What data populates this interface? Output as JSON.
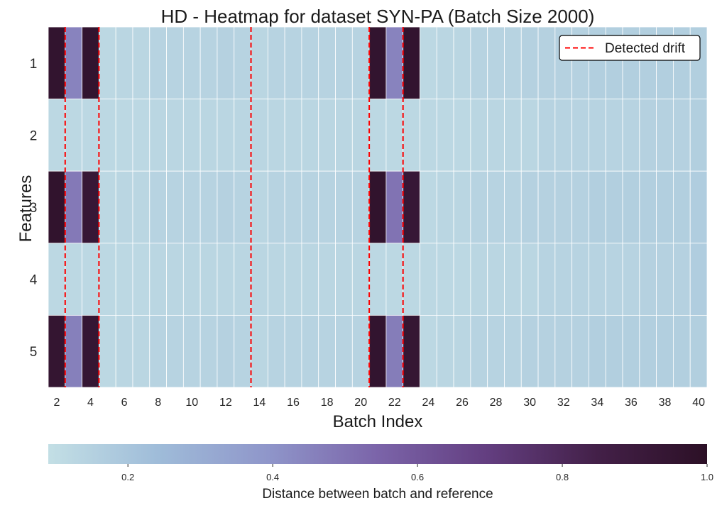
{
  "chart_data": {
    "type": "heatmap",
    "title": "HD - Heatmap for dataset SYN-PA (Batch Size 2000)",
    "xlabel": "Batch Index",
    "ylabel": "Features",
    "x": [
      2,
      3,
      4,
      5,
      6,
      7,
      8,
      9,
      10,
      11,
      12,
      13,
      14,
      15,
      16,
      17,
      18,
      19,
      20,
      21,
      22,
      23,
      24,
      25,
      26,
      27,
      28,
      29,
      30,
      31,
      32,
      33,
      34,
      35,
      36,
      37,
      38,
      39,
      40
    ],
    "x_tick_labels": [
      "2",
      "4",
      "6",
      "8",
      "10",
      "12",
      "14",
      "16",
      "18",
      "20",
      "22",
      "24",
      "26",
      "28",
      "30",
      "32",
      "34",
      "36",
      "38",
      "40"
    ],
    "y_tick_labels": [
      "1",
      "2",
      "3",
      "4",
      "5"
    ],
    "values": [
      [
        0.96,
        0.45,
        0.96,
        0.12,
        0.13,
        0.13,
        0.14,
        0.14,
        0.14,
        0.14,
        0.15,
        0.14,
        0.13,
        0.14,
        0.14,
        0.14,
        0.14,
        0.14,
        0.14,
        0.96,
        0.45,
        0.96,
        0.12,
        0.13,
        0.13,
        0.14,
        0.14,
        0.14,
        0.15,
        0.15,
        0.15,
        0.15,
        0.16,
        0.16,
        0.16,
        0.16,
        0.16,
        0.16,
        0.16
      ],
      [
        0.12,
        0.12,
        0.12,
        0.12,
        0.12,
        0.12,
        0.13,
        0.13,
        0.13,
        0.13,
        0.13,
        0.13,
        0.13,
        0.13,
        0.13,
        0.13,
        0.13,
        0.13,
        0.13,
        0.12,
        0.12,
        0.12,
        0.12,
        0.12,
        0.12,
        0.13,
        0.13,
        0.13,
        0.13,
        0.14,
        0.14,
        0.14,
        0.14,
        0.14,
        0.14,
        0.15,
        0.15,
        0.15,
        0.16
      ],
      [
        0.97,
        0.48,
        0.93,
        0.12,
        0.13,
        0.13,
        0.14,
        0.14,
        0.14,
        0.14,
        0.15,
        0.14,
        0.13,
        0.14,
        0.14,
        0.14,
        0.14,
        0.14,
        0.14,
        0.97,
        0.5,
        0.93,
        0.12,
        0.13,
        0.13,
        0.14,
        0.14,
        0.14,
        0.15,
        0.15,
        0.15,
        0.15,
        0.16,
        0.16,
        0.16,
        0.16,
        0.16,
        0.16,
        0.17
      ],
      [
        0.12,
        0.12,
        0.12,
        0.12,
        0.12,
        0.12,
        0.13,
        0.13,
        0.13,
        0.13,
        0.13,
        0.13,
        0.13,
        0.13,
        0.13,
        0.13,
        0.13,
        0.13,
        0.13,
        0.12,
        0.12,
        0.12,
        0.12,
        0.12,
        0.12,
        0.13,
        0.13,
        0.13,
        0.13,
        0.14,
        0.14,
        0.14,
        0.14,
        0.14,
        0.14,
        0.15,
        0.15,
        0.15,
        0.17
      ],
      [
        0.95,
        0.46,
        0.94,
        0.12,
        0.13,
        0.13,
        0.14,
        0.14,
        0.14,
        0.14,
        0.15,
        0.14,
        0.13,
        0.14,
        0.14,
        0.14,
        0.14,
        0.14,
        0.14,
        0.96,
        0.47,
        0.94,
        0.12,
        0.13,
        0.13,
        0.14,
        0.14,
        0.14,
        0.15,
        0.15,
        0.15,
        0.15,
        0.16,
        0.16,
        0.16,
        0.16,
        0.16,
        0.16,
        0.16
      ]
    ],
    "detected_drift": [
      2.5,
      4.5,
      13.5,
      20.5,
      22.5
    ],
    "legend": {
      "label": "Detected drift",
      "position": "top-right",
      "color": "#ff0000"
    },
    "colorbar": {
      "label": "Distance between batch and reference",
      "range": [
        0.09,
        1.0
      ],
      "ticks": [
        0.2,
        0.4,
        0.6,
        0.8,
        1.0
      ],
      "tick_labels": [
        "0.2",
        "0.4",
        "0.6",
        "0.8",
        "1.0"
      ],
      "colormap": [
        "#c3dfe5",
        "#9fbcd9",
        "#8f96ca",
        "#7b64a9",
        "#633e80",
        "#432048",
        "#2c1026"
      ],
      "position": "bottom"
    },
    "grid": true
  }
}
